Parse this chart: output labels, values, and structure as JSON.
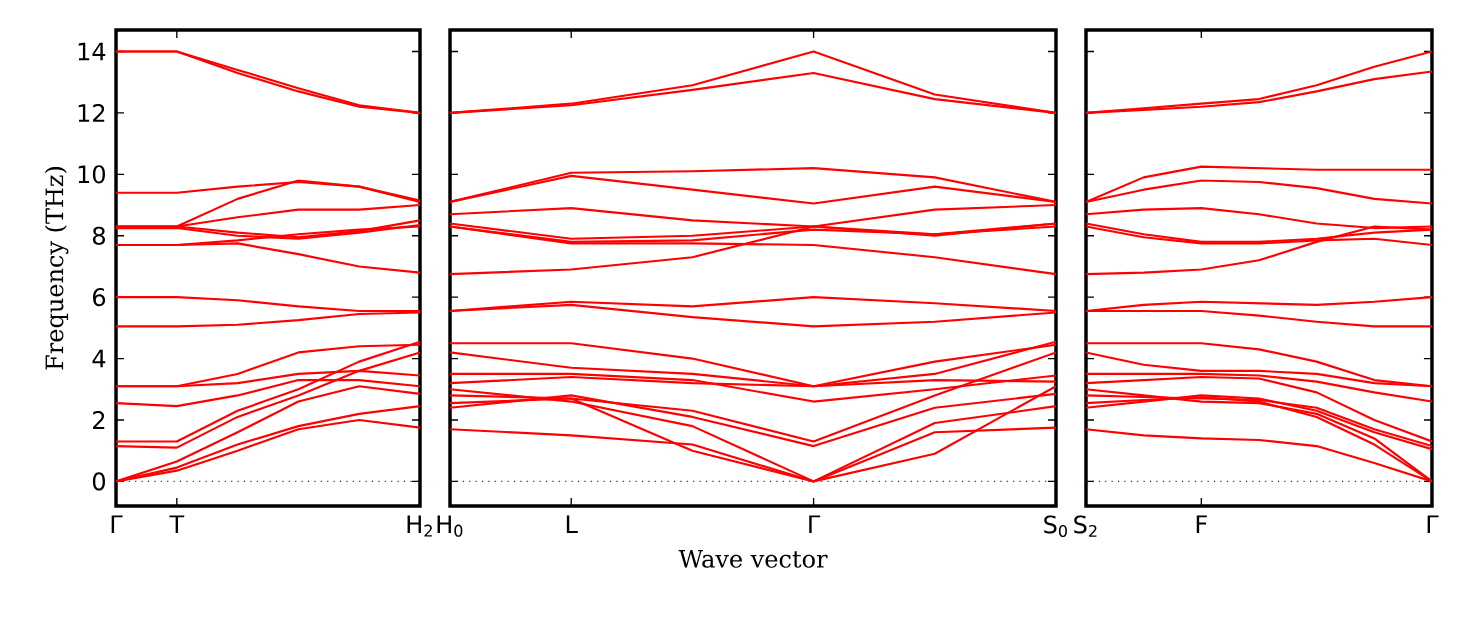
{
  "chart_data": [
    {
      "type": "line",
      "ylabel": "Frequency (THz)",
      "ylim": [
        -0.8,
        14.7
      ],
      "categories": [
        "Γ",
        "T",
        null,
        null,
        null,
        "H$_{2}$"
      ],
      "yticks": [
        0,
        2,
        4,
        6,
        8,
        10,
        12,
        14
      ],
      "ref_lines": [
        {
          "axis": "y",
          "value": 0,
          "color": "#0000ff",
          "line_style": "dotted"
        }
      ],
      "series": [
        {
          "color": "#ff0000",
          "values": [
            14.0,
            14.0,
            13.4,
            12.8,
            12.25,
            12.0
          ]
        },
        {
          "color": "#ff0000",
          "values": [
            14.0,
            14.0,
            13.3,
            12.7,
            12.2,
            12.0
          ]
        },
        {
          "color": "#ff0000",
          "values": [
            9.4,
            9.4,
            9.6,
            9.75,
            9.6,
            9.1
          ]
        },
        {
          "color": "#ff0000",
          "values": [
            8.3,
            8.3,
            9.2,
            9.8,
            9.6,
            9.15
          ]
        },
        {
          "color": "#ff0000",
          "values": [
            8.3,
            8.3,
            8.6,
            8.85,
            8.85,
            9.0
          ]
        },
        {
          "color": "#ff0000",
          "values": [
            8.3,
            8.3,
            8.1,
            7.95,
            8.15,
            8.5
          ]
        },
        {
          "color": "#ff0000",
          "values": [
            8.25,
            8.25,
            8.0,
            7.9,
            8.1,
            8.35
          ]
        },
        {
          "color": "#ff0000",
          "values": [
            7.7,
            7.7,
            7.75,
            7.4,
            7.0,
            6.8
          ]
        },
        {
          "color": "#ff0000",
          "values": [
            7.7,
            7.7,
            7.85,
            8.05,
            8.2,
            8.3
          ]
        },
        {
          "color": "#ff0000",
          "values": [
            6.0,
            6.0,
            5.9,
            5.7,
            5.55,
            5.55
          ]
        },
        {
          "color": "#ff0000",
          "values": [
            5.05,
            5.05,
            5.1,
            5.25,
            5.45,
            5.5
          ]
        },
        {
          "color": "#ff0000",
          "values": [
            3.1,
            3.1,
            3.5,
            4.2,
            4.4,
            4.45
          ]
        },
        {
          "color": "#ff0000",
          "values": [
            3.1,
            3.1,
            3.2,
            3.5,
            3.6,
            3.45
          ]
        },
        {
          "color": "#ff0000",
          "values": [
            2.55,
            2.45,
            2.8,
            3.3,
            3.3,
            3.1
          ]
        },
        {
          "color": "#ff0000",
          "values": [
            1.3,
            1.3,
            2.3,
            3.0,
            3.9,
            4.55
          ]
        },
        {
          "color": "#ff0000",
          "values": [
            1.15,
            1.1,
            2.1,
            2.8,
            3.6,
            4.2
          ]
        },
        {
          "color": "#ff0000",
          "values": [
            0,
            0.65,
            1.6,
            2.6,
            3.1,
            2.85
          ]
        },
        {
          "color": "#ff0000",
          "values": [
            0,
            0.45,
            1.2,
            1.8,
            2.2,
            2.45
          ]
        },
        {
          "color": "#ff0000",
          "values": [
            0,
            0.35,
            1.0,
            1.7,
            2.0,
            1.75
          ]
        }
      ]
    },
    {
      "type": "line",
      "xlabel": "Wave vector",
      "tick_labels": "x",
      "ylim": [
        -0.8,
        14.7
      ],
      "categories": [
        "H$_{0}$",
        "L",
        null,
        "Γ",
        null,
        "S$_{0}$"
      ],
      "yticks": [
        0,
        2,
        4,
        6,
        8,
        10,
        12,
        14
      ],
      "ref_lines": [
        {
          "axis": "y",
          "value": 0,
          "color": "#0000ff",
          "line_style": "dotted"
        }
      ],
      "series": [
        {
          "color": "#ff0000",
          "values": [
            12.0,
            12.3,
            12.9,
            14.0,
            12.6,
            12.0
          ]
        },
        {
          "color": "#ff0000",
          "values": [
            12.0,
            12.25,
            12.75,
            13.3,
            12.45,
            12.0
          ]
        },
        {
          "color": "#ff0000",
          "values": [
            9.1,
            10.05,
            10.1,
            10.2,
            9.9,
            9.1
          ]
        },
        {
          "color": "#ff0000",
          "values": [
            9.1,
            9.95,
            9.5,
            9.05,
            9.6,
            9.1
          ]
        },
        {
          "color": "#ff0000",
          "values": [
            8.7,
            8.9,
            8.5,
            8.3,
            8.85,
            9.0
          ]
        },
        {
          "color": "#ff0000",
          "values": [
            8.4,
            7.9,
            8.0,
            8.3,
            8.0,
            8.4
          ]
        },
        {
          "color": "#ff0000",
          "values": [
            8.3,
            7.8,
            7.85,
            8.2,
            8.05,
            8.3
          ]
        },
        {
          "color": "#ff0000",
          "values": [
            8.3,
            7.75,
            7.75,
            7.7,
            7.3,
            6.75
          ]
        },
        {
          "color": "#ff0000",
          "values": [
            6.75,
            6.9,
            7.3,
            8.3,
            8.05,
            8.4
          ]
        },
        {
          "color": "#ff0000",
          "values": [
            5.55,
            5.85,
            5.7,
            6.0,
            5.8,
            5.55
          ]
        },
        {
          "color": "#ff0000",
          "values": [
            5.55,
            5.75,
            5.35,
            5.05,
            5.2,
            5.5
          ]
        },
        {
          "color": "#ff0000",
          "values": [
            4.5,
            4.5,
            4.0,
            3.1,
            3.9,
            4.45
          ]
        },
        {
          "color": "#ff0000",
          "values": [
            4.2,
            3.7,
            3.5,
            3.1,
            3.5,
            4.55
          ]
        },
        {
          "color": "#ff0000",
          "values": [
            3.5,
            3.5,
            3.3,
            2.6,
            3.0,
            3.45
          ]
        },
        {
          "color": "#ff0000",
          "values": [
            3.2,
            3.4,
            3.2,
            3.1,
            3.3,
            3.25
          ]
        },
        {
          "color": "#ff0000",
          "values": [
            2.8,
            2.7,
            2.3,
            1.3,
            2.8,
            4.2
          ]
        },
        {
          "color": "#ff0000",
          "values": [
            2.4,
            2.8,
            2.1,
            1.15,
            2.4,
            2.85
          ]
        },
        {
          "color": "#ff0000",
          "values": [
            3.0,
            2.6,
            1.8,
            0,
            1.9,
            2.45
          ]
        },
        {
          "color": "#ff0000",
          "values": [
            1.7,
            1.5,
            1.2,
            0,
            1.6,
            1.75
          ]
        },
        {
          "color": "#ff0000",
          "values": [
            2.55,
            2.7,
            1.0,
            0,
            0.9,
            3.1
          ]
        }
      ]
    },
    {
      "type": "line",
      "tick_labels": "x",
      "ylim": [
        -0.8,
        14.7
      ],
      "categories": [
        "S$_{2}$",
        null,
        "F",
        null,
        null,
        null,
        "Γ"
      ],
      "yticks": [
        0,
        2,
        4,
        6,
        8,
        10,
        12,
        14
      ],
      "ref_lines": [
        {
          "axis": "y",
          "value": 0,
          "color": "#0000ff",
          "line_style": "dotted"
        }
      ],
      "series": [
        {
          "color": "#ff0000",
          "values": [
            12.0,
            12.15,
            12.3,
            12.45,
            12.9,
            13.5,
            14.0
          ]
        },
        {
          "color": "#ff0000",
          "values": [
            12.0,
            12.1,
            12.2,
            12.35,
            12.7,
            13.1,
            13.35
          ]
        },
        {
          "color": "#ff0000",
          "values": [
            9.1,
            9.9,
            10.25,
            10.2,
            10.15,
            10.15,
            10.15
          ]
        },
        {
          "color": "#ff0000",
          "values": [
            9.1,
            9.5,
            9.8,
            9.75,
            9.55,
            9.2,
            9.05
          ]
        },
        {
          "color": "#ff0000",
          "values": [
            8.7,
            8.85,
            8.9,
            8.7,
            8.4,
            8.25,
            8.3
          ]
        },
        {
          "color": "#ff0000",
          "values": [
            8.4,
            8.05,
            7.8,
            7.8,
            7.9,
            8.1,
            8.2
          ]
        },
        {
          "color": "#ff0000",
          "values": [
            8.3,
            7.95,
            7.75,
            7.75,
            7.85,
            7.9,
            7.7
          ]
        },
        {
          "color": "#ff0000",
          "values": [
            6.75,
            6.8,
            6.9,
            7.2,
            7.8,
            8.3,
            8.2
          ]
        },
        {
          "color": "#ff0000",
          "values": [
            5.55,
            5.75,
            5.85,
            5.8,
            5.75,
            5.85,
            6.0
          ]
        },
        {
          "color": "#ff0000",
          "values": [
            5.55,
            5.55,
            5.55,
            5.4,
            5.2,
            5.05,
            5.05
          ]
        },
        {
          "color": "#ff0000",
          "values": [
            4.5,
            4.5,
            4.5,
            4.3,
            3.9,
            3.3,
            3.1
          ]
        },
        {
          "color": "#ff0000",
          "values": [
            4.2,
            3.8,
            3.6,
            3.6,
            3.5,
            3.2,
            3.1
          ]
        },
        {
          "color": "#ff0000",
          "values": [
            3.5,
            3.5,
            3.5,
            3.45,
            3.25,
            2.9,
            2.6
          ]
        },
        {
          "color": "#ff0000",
          "values": [
            3.2,
            3.3,
            3.4,
            3.35,
            2.9,
            2.0,
            1.3
          ]
        },
        {
          "color": "#ff0000",
          "values": [
            2.8,
            2.75,
            2.7,
            2.65,
            2.4,
            1.7,
            1.15
          ]
        },
        {
          "color": "#ff0000",
          "values": [
            2.4,
            2.6,
            2.8,
            2.7,
            2.3,
            1.6,
            1.05
          ]
        },
        {
          "color": "#ff0000",
          "values": [
            3.0,
            2.8,
            2.6,
            2.55,
            2.2,
            1.4,
            0
          ]
        },
        {
          "color": "#ff0000",
          "values": [
            1.7,
            1.5,
            1.4,
            1.35,
            1.15,
            0.6,
            0
          ]
        },
        {
          "color": "#ff0000",
          "values": [
            2.55,
            2.65,
            2.75,
            2.6,
            2.1,
            1.2,
            0
          ]
        }
      ]
    }
  ]
}
